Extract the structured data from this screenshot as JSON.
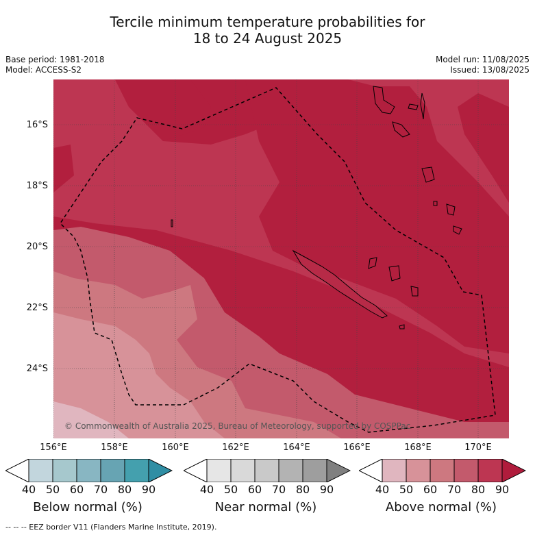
{
  "header": {
    "title_line1": "Tercile minimum temperature probabilities for",
    "title_line2": "18 to 24 August 2025"
  },
  "meta": {
    "base_period": "Base period: 1981-2018",
    "model": "Model: ACCESS-S2",
    "model_run": "Model run: 11/08/2025",
    "issued": "Issued: 13/08/2025"
  },
  "map": {
    "latitude_labels": [
      "16°S",
      "18°S",
      "20°S",
      "22°S",
      "24°S"
    ],
    "longitude_labels": [
      "156°E",
      "158°E",
      "160°E",
      "162°E",
      "164°E",
      "166°E",
      "168°E",
      "170°E"
    ],
    "copyright": "© Commonwealth of Australia 2025, Bureau of Meteorology, supported by COSPPac",
    "dominant_category": "Above normal",
    "dominant_probability_range": "70-90%"
  },
  "legend": {
    "ticks": [
      "40",
      "50",
      "60",
      "70",
      "80",
      "90"
    ],
    "below": {
      "title": "Below normal (%)",
      "colors": [
        "#ffffff",
        "#c2d6dd",
        "#a6c8cd",
        "#88b6c2",
        "#67a4b3",
        "#44a0ae",
        "#2f8ea4"
      ]
    },
    "near": {
      "title": "Near normal (%)",
      "colors": [
        "#ffffff",
        "#e6e6e6",
        "#d9d9d9",
        "#c9c9c9",
        "#b3b3b3",
        "#9e9e9e",
        "#808080"
      ]
    },
    "above": {
      "title": "Above normal (%)",
      "colors": [
        "#ffffff",
        "#e0b6bf",
        "#d79299",
        "#cd7880",
        "#c35a6c",
        "#bd3652",
        "#b01c3c"
      ]
    }
  },
  "footnote": "--  --  -- EEZ border V11 (Flanders Marine Institute, 2019)."
}
